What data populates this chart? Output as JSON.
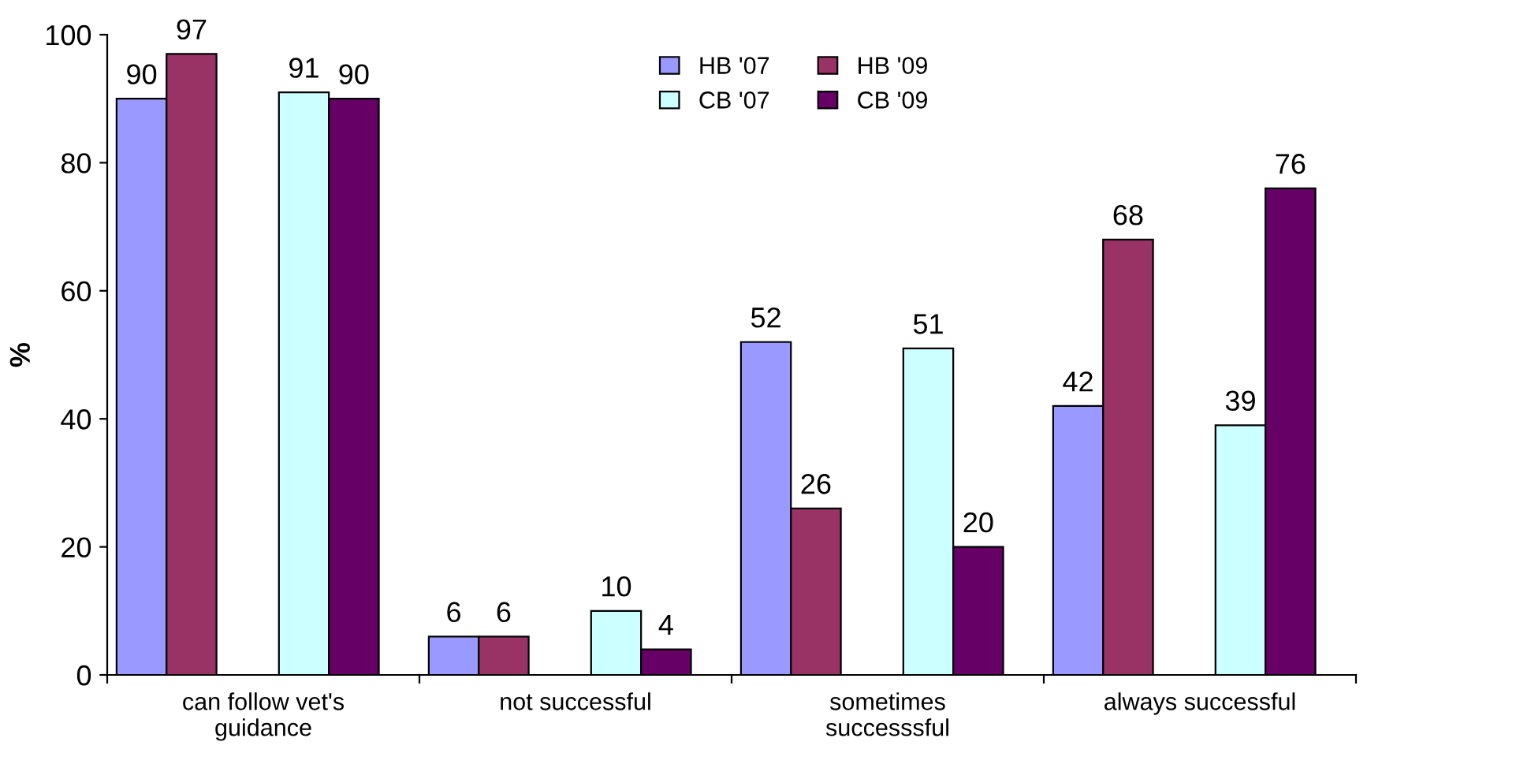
{
  "chart_data": {
    "type": "bar",
    "ylabel": "%",
    "categories": [
      "can follow vet's\nguidance",
      "not successful",
      "sometimes\nsuccesssful",
      "always successful"
    ],
    "series": [
      {
        "name": "HB '07",
        "color": "#9999ff",
        "values": [
          90,
          6,
          52,
          42
        ]
      },
      {
        "name": "HB '09",
        "color": "#993366",
        "values": [
          97,
          6,
          26,
          68
        ]
      },
      {
        "name": "CB '07",
        "color": "#ccffff",
        "values": [
          91,
          10,
          51,
          39
        ]
      },
      {
        "name": "CB '09",
        "color": "#660066",
        "values": [
          90,
          4,
          20,
          76
        ]
      }
    ],
    "ylim": [
      0,
      100
    ],
    "yticks": [
      0,
      20,
      40,
      60,
      80,
      100
    ],
    "grid": false,
    "legend": "top",
    "data_labels": true
  }
}
